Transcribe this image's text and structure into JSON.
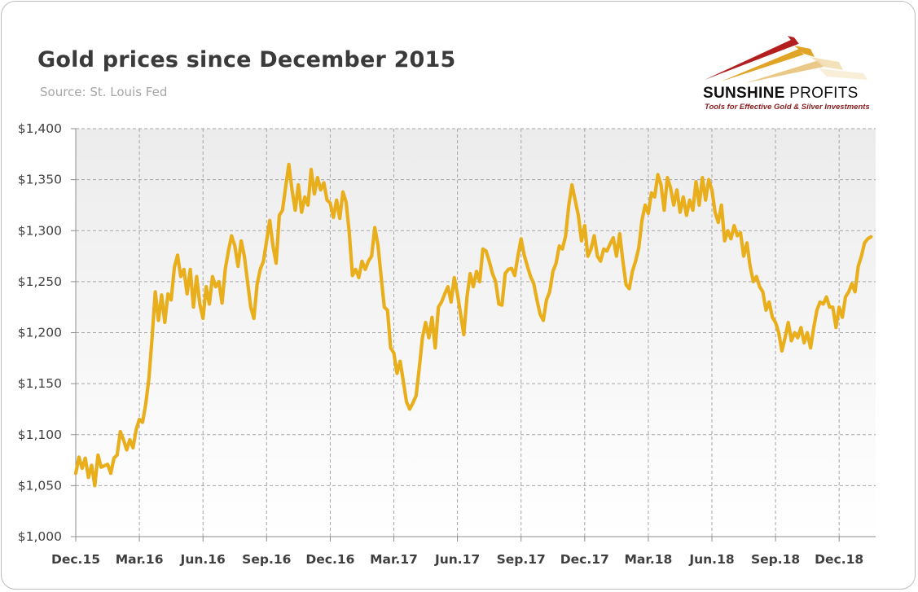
{
  "header": {
    "title": "Gold prices since December 2015",
    "subtitle": "Source: St. Louis Fed"
  },
  "logo": {
    "brand_bold": "SUNSHINE",
    "brand_light": " PROFITS",
    "tagline": "Tools for Effective Gold & Silver Investments",
    "colors": [
      "#b31f1f",
      "#e0a526",
      "#e8c27a"
    ]
  },
  "chart_data": {
    "type": "line",
    "title": "Gold prices since December 2015",
    "subtitle": "Source: St. Louis Fed",
    "xlabel": "",
    "ylabel": "",
    "grid": true,
    "ylim": [
      1000,
      1400
    ],
    "y_ticks": [
      "$1,000",
      "$1,050",
      "$1,100",
      "$1,150",
      "$1,200",
      "$1,250",
      "$1,300",
      "$1,350",
      "$1,400"
    ],
    "x_ticks": [
      "Dec.15",
      "Mar.16",
      "Jun.16",
      "Sep.16",
      "Dec.16",
      "Mar.17",
      "Jun.17",
      "Sep.17",
      "Dec.17",
      "Mar.18",
      "Jun.18",
      "Sep.18",
      "Dec.18"
    ],
    "colors": {
      "line": "#E9AE1B",
      "plot_bg_top": "#ececec",
      "plot_bg_bottom": "#ffffff",
      "grid": "#a6a6a6"
    },
    "series": [
      {
        "values": [
          [
            0,
            1062
          ],
          [
            0.05,
            1078
          ],
          [
            0.1,
            1067
          ],
          [
            0.15,
            1077
          ],
          [
            0.2,
            1058
          ],
          [
            0.25,
            1070
          ],
          [
            0.3,
            1050
          ],
          [
            0.35,
            1080
          ],
          [
            0.4,
            1068
          ],
          [
            0.5,
            1071
          ],
          [
            0.55,
            1062
          ],
          [
            0.6,
            1077
          ],
          [
            0.65,
            1080
          ],
          [
            0.7,
            1103
          ],
          [
            0.75,
            1095
          ],
          [
            0.8,
            1085
          ],
          [
            0.85,
            1095
          ],
          [
            0.9,
            1087
          ],
          [
            0.95,
            1105
          ],
          [
            1.0,
            1115
          ],
          [
            1.05,
            1112
          ],
          [
            1.1,
            1130
          ],
          [
            1.15,
            1155
          ],
          [
            1.2,
            1195
          ],
          [
            1.25,
            1240
          ],
          [
            1.3,
            1212
          ],
          [
            1.35,
            1237
          ],
          [
            1.4,
            1210
          ],
          [
            1.45,
            1238
          ],
          [
            1.5,
            1232
          ],
          [
            1.55,
            1264
          ],
          [
            1.6,
            1276
          ],
          [
            1.65,
            1255
          ],
          [
            1.7,
            1262
          ],
          [
            1.75,
            1238
          ],
          [
            1.8,
            1262
          ],
          [
            1.85,
            1225
          ],
          [
            1.9,
            1255
          ],
          [
            1.95,
            1228
          ],
          [
            2.0,
            1214
          ],
          [
            2.05,
            1245
          ],
          [
            2.1,
            1228
          ],
          [
            2.15,
            1255
          ],
          [
            2.2,
            1245
          ],
          [
            2.25,
            1250
          ],
          [
            2.3,
            1229
          ],
          [
            2.35,
            1262
          ],
          [
            2.4,
            1280
          ],
          [
            2.45,
            1295
          ],
          [
            2.5,
            1285
          ],
          [
            2.55,
            1265
          ],
          [
            2.6,
            1290
          ],
          [
            2.65,
            1275
          ],
          [
            2.7,
            1250
          ],
          [
            2.75,
            1225
          ],
          [
            2.8,
            1214
          ],
          [
            2.85,
            1247
          ],
          [
            2.9,
            1262
          ],
          [
            2.95,
            1270
          ],
          [
            3.0,
            1290
          ],
          [
            3.05,
            1310
          ],
          [
            3.1,
            1285
          ],
          [
            3.15,
            1268
          ],
          [
            3.2,
            1315
          ],
          [
            3.25,
            1320
          ],
          [
            3.3,
            1343
          ],
          [
            3.35,
            1365
          ],
          [
            3.4,
            1340
          ],
          [
            3.45,
            1320
          ],
          [
            3.5,
            1345
          ],
          [
            3.55,
            1318
          ],
          [
            3.6,
            1333
          ],
          [
            3.65,
            1325
          ],
          [
            3.7,
            1360
          ],
          [
            3.75,
            1336
          ],
          [
            3.8,
            1352
          ],
          [
            3.85,
            1340
          ],
          [
            3.9,
            1347
          ],
          [
            3.95,
            1330
          ],
          [
            4.0,
            1327
          ],
          [
            4.05,
            1313
          ],
          [
            4.1,
            1330
          ],
          [
            4.15,
            1312
          ],
          [
            4.2,
            1338
          ],
          [
            4.25,
            1328
          ],
          [
            4.3,
            1298
          ],
          [
            4.35,
            1256
          ],
          [
            4.4,
            1262
          ],
          [
            4.45,
            1254
          ],
          [
            4.5,
            1270
          ],
          [
            4.55,
            1262
          ],
          [
            4.6,
            1270
          ],
          [
            4.65,
            1275
          ],
          [
            4.7,
            1303
          ],
          [
            4.75,
            1286
          ],
          [
            4.8,
            1255
          ],
          [
            4.85,
            1225
          ],
          [
            4.9,
            1222
          ],
          [
            4.95,
            1185
          ],
          [
            5.0,
            1180
          ],
          [
            5.05,
            1160
          ],
          [
            5.1,
            1172
          ],
          [
            5.15,
            1152
          ],
          [
            5.2,
            1132
          ],
          [
            5.25,
            1125
          ],
          [
            5.3,
            1131
          ],
          [
            5.35,
            1138
          ],
          [
            5.4,
            1165
          ],
          [
            5.45,
            1195
          ],
          [
            5.5,
            1210
          ],
          [
            5.55,
            1195
          ],
          [
            5.6,
            1215
          ],
          [
            5.65,
            1185
          ],
          [
            5.7,
            1225
          ],
          [
            5.75,
            1230
          ],
          [
            5.8,
            1238
          ],
          [
            5.85,
            1245
          ],
          [
            5.9,
            1230
          ],
          [
            5.95,
            1254
          ],
          [
            6.0,
            1238
          ],
          [
            6.05,
            1218
          ],
          [
            6.1,
            1198
          ],
          [
            6.15,
            1235
          ],
          [
            6.2,
            1258
          ],
          [
            6.25,
            1245
          ],
          [
            6.3,
            1260
          ],
          [
            6.35,
            1250
          ],
          [
            6.4,
            1282
          ],
          [
            6.45,
            1280
          ],
          [
            6.5,
            1270
          ],
          [
            6.55,
            1258
          ],
          [
            6.6,
            1250
          ],
          [
            6.65,
            1228
          ],
          [
            6.7,
            1227
          ],
          [
            6.75,
            1258
          ],
          [
            6.8,
            1262
          ],
          [
            6.85,
            1263
          ],
          [
            6.9,
            1256
          ],
          [
            6.95,
            1275
          ],
          [
            7.0,
            1292
          ],
          [
            7.05,
            1276
          ],
          [
            7.1,
            1265
          ],
          [
            7.15,
            1255
          ],
          [
            7.2,
            1248
          ],
          [
            7.25,
            1232
          ],
          [
            7.3,
            1218
          ],
          [
            7.35,
            1212
          ],
          [
            7.4,
            1232
          ],
          [
            7.45,
            1240
          ],
          [
            7.5,
            1260
          ],
          [
            7.55,
            1268
          ],
          [
            7.6,
            1285
          ],
          [
            7.65,
            1282
          ],
          [
            7.7,
            1295
          ],
          [
            7.75,
            1325
          ],
          [
            7.8,
            1345
          ],
          [
            7.85,
            1330
          ],
          [
            7.9,
            1315
          ],
          [
            7.95,
            1290
          ],
          [
            8.0,
            1305
          ],
          [
            8.05,
            1275
          ],
          [
            8.1,
            1282
          ],
          [
            8.15,
            1295
          ],
          [
            8.2,
            1275
          ],
          [
            8.25,
            1270
          ],
          [
            8.3,
            1282
          ],
          [
            8.35,
            1280
          ],
          [
            8.4,
            1287
          ],
          [
            8.45,
            1293
          ],
          [
            8.5,
            1275
          ],
          [
            8.55,
            1297
          ],
          [
            8.6,
            1270
          ],
          [
            8.65,
            1247
          ],
          [
            8.7,
            1243
          ],
          [
            8.75,
            1260
          ],
          [
            8.8,
            1270
          ],
          [
            8.85,
            1283
          ],
          [
            8.9,
            1310
          ],
          [
            8.95,
            1325
          ],
          [
            9.0,
            1317
          ],
          [
            9.05,
            1337
          ],
          [
            9.1,
            1333
          ],
          [
            9.15,
            1355
          ],
          [
            9.2,
            1345
          ],
          [
            9.25,
            1320
          ],
          [
            9.3,
            1352
          ],
          [
            9.35,
            1342
          ],
          [
            9.4,
            1325
          ],
          [
            9.45,
            1340
          ],
          [
            9.5,
            1318
          ],
          [
            9.55,
            1333
          ],
          [
            9.6,
            1315
          ],
          [
            9.65,
            1330
          ],
          [
            9.7,
            1320
          ],
          [
            9.75,
            1348
          ],
          [
            9.8,
            1325
          ],
          [
            9.85,
            1352
          ],
          [
            9.9,
            1330
          ],
          [
            9.95,
            1350
          ],
          [
            10.0,
            1340
          ],
          [
            10.05,
            1318
          ],
          [
            10.1,
            1308
          ],
          [
            10.15,
            1325
          ],
          [
            10.2,
            1290
          ],
          [
            10.25,
            1300
          ],
          [
            10.3,
            1292
          ],
          [
            10.35,
            1305
          ],
          [
            10.4,
            1295
          ],
          [
            10.45,
            1298
          ],
          [
            10.5,
            1275
          ],
          [
            10.55,
            1288
          ],
          [
            10.6,
            1265
          ],
          [
            10.65,
            1250
          ],
          [
            10.7,
            1255
          ],
          [
            10.75,
            1245
          ],
          [
            10.8,
            1240
          ],
          [
            10.85,
            1222
          ],
          [
            10.9,
            1230
          ],
          [
            10.95,
            1215
          ],
          [
            11.0,
            1210
          ],
          [
            11.05,
            1200
          ],
          [
            11.1,
            1182
          ],
          [
            11.15,
            1195
          ],
          [
            11.2,
            1210
          ],
          [
            11.25,
            1192
          ],
          [
            11.3,
            1200
          ],
          [
            11.35,
            1195
          ],
          [
            11.4,
            1205
          ],
          [
            11.45,
            1190
          ],
          [
            11.5,
            1200
          ],
          [
            11.55,
            1185
          ],
          [
            11.6,
            1205
          ],
          [
            11.65,
            1222
          ],
          [
            11.7,
            1230
          ],
          [
            11.75,
            1228
          ],
          [
            11.8,
            1235
          ],
          [
            11.85,
            1225
          ],
          [
            11.9,
            1225
          ],
          [
            11.95,
            1205
          ],
          [
            12.0,
            1225
          ],
          [
            12.05,
            1215
          ],
          [
            12.1,
            1235
          ],
          [
            12.15,
            1240
          ],
          [
            12.2,
            1248
          ],
          [
            12.25,
            1240
          ],
          [
            12.3,
            1265
          ],
          [
            12.35,
            1275
          ],
          [
            12.4,
            1288
          ],
          [
            12.45,
            1292
          ],
          [
            12.5,
            1294
          ]
        ]
      }
    ]
  }
}
